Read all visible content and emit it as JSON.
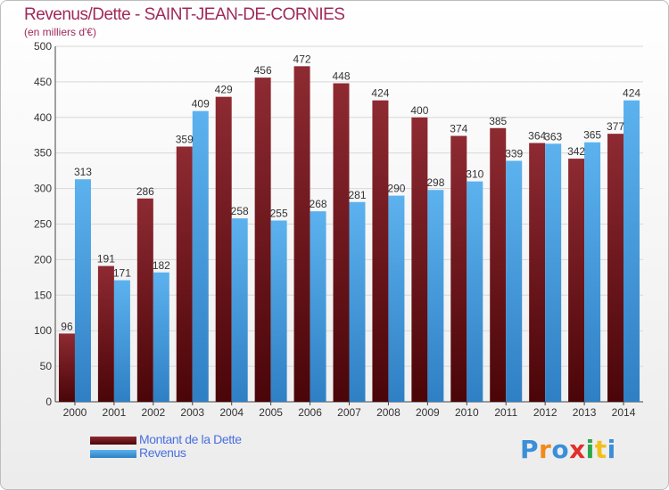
{
  "header": {
    "title": "Revenus/Dette - SAINT-JEAN-DE-CORNIES",
    "subtitle": "(en milliers d'€)"
  },
  "chart_data": {
    "type": "bar",
    "title": "Revenus/Dette - SAINT-JEAN-DE-CORNIES",
    "subtitle": "(en milliers d'€)",
    "categories": [
      "2000",
      "2001",
      "2002",
      "2003",
      "2004",
      "2005",
      "2006",
      "2007",
      "2008",
      "2009",
      "2010",
      "2011",
      "2012",
      "2013",
      "2014"
    ],
    "series": [
      {
        "name": "Montant de la Dette",
        "color": "#7a1a1f",
        "values": [
          96,
          191,
          286,
          359,
          429,
          456,
          472,
          448,
          424,
          400,
          374,
          385,
          364,
          342,
          377
        ]
      },
      {
        "name": "Revenus",
        "color": "#4fa3e6",
        "values": [
          313,
          171,
          182,
          409,
          258,
          255,
          268,
          281,
          290,
          298,
          310,
          339,
          363,
          365,
          424
        ]
      }
    ],
    "ylim": [
      0,
      500
    ],
    "yticks": [
      0,
      50,
      100,
      150,
      200,
      250,
      300,
      350,
      400,
      450,
      500
    ],
    "grid": true,
    "legend": "bottom-left"
  },
  "logo": {
    "text": "Proxiti",
    "letters": [
      "P",
      "r",
      "o",
      "x",
      "i",
      "t",
      "i"
    ],
    "colors": [
      "#3a8fd8",
      "#f08a1c",
      "#3a8fd8",
      "#e0302a",
      "#2aa84a",
      "#f0c01c",
      "#3a8fd8"
    ]
  }
}
